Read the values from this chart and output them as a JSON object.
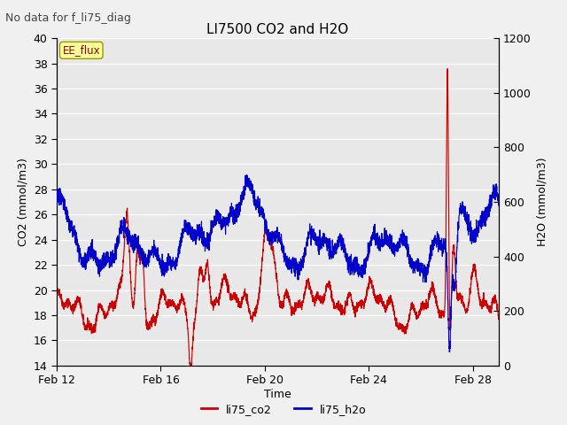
{
  "title": "LI7500 CO2 and H2O",
  "top_left_text": "No data for f_li75_diag",
  "xlabel": "Time",
  "ylabel_left": "CO2 (mmol/m3)",
  "ylabel_right": "H2O (mmol/m3)",
  "ylim_left": [
    14,
    40
  ],
  "ylim_right": [
    0,
    1200
  ],
  "yticks_left": [
    14,
    16,
    18,
    20,
    22,
    24,
    26,
    28,
    30,
    32,
    34,
    36,
    38,
    40
  ],
  "yticks_right": [
    0,
    200,
    400,
    600,
    800,
    1000,
    1200
  ],
  "xtick_positions": [
    0,
    4,
    8,
    12,
    16
  ],
  "xtick_labels": [
    "Feb 12",
    "Feb 16",
    "Feb 20",
    "Feb 24",
    "Feb 28"
  ],
  "xlim": [
    0,
    17
  ],
  "legend_labels": [
    "li75_co2",
    "li75_h2o"
  ],
  "co2_color": "#cc0000",
  "h2o_color": "#0000cc",
  "fig_bg": "#f0f0f0",
  "plot_bg": "#e8e8e8",
  "grid_color": "#ffffff",
  "annotation_text": "EE_flux",
  "annotation_box_facecolor": "#ffff99",
  "annotation_box_edgecolor": "#999900",
  "annotation_text_color": "#990000",
  "top_left_fontsize": 9,
  "title_fontsize": 11,
  "axis_label_fontsize": 9,
  "tick_fontsize": 9,
  "legend_fontsize": 9
}
